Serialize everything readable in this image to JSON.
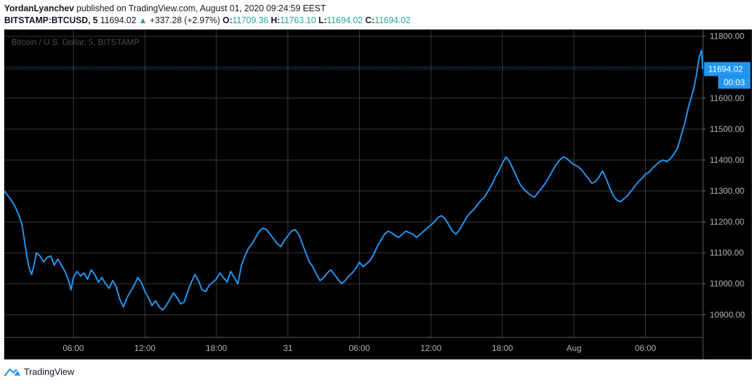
{
  "header": {
    "author": "YordanLyanchev",
    "published_text": "published on TradingView.com, August 01, 2020 09:24:59 EEST",
    "symbol": "BITSTAMP:BTCUSD, 5",
    "last": "11694.02",
    "change": "+337.28 (+2.97%)",
    "o_label": "O:",
    "o_value": "11709.36",
    "h_label": "H:",
    "h_value": "11763.10",
    "l_label": "L:",
    "l_value": "11694.02",
    "c_label": "C:",
    "c_value": "11694.02"
  },
  "footer": {
    "brand": "TradingView"
  },
  "colors": {
    "line": "#2196f3",
    "background": "#000000",
    "grid": "#3a3a3a",
    "up": "#26a69a"
  },
  "chart_data": {
    "type": "line",
    "title": "Bitcoin / U.S. Dollar, 5, BITSTAMP",
    "ylim": [
      10828,
      11822
    ],
    "y_ticks": [
      10900,
      11000,
      11100,
      11200,
      11300,
      11400,
      11500,
      11600,
      11700,
      11800
    ],
    "y_tick_labels": [
      "10900.00",
      "11000.00",
      "11100.00",
      "11200.00",
      "11300.00",
      "11400.00",
      "11500.00",
      "11600.00",
      "11700.00",
      "11800.00"
    ],
    "x_ticks": [
      {
        "label": "06:00",
        "t": 6
      },
      {
        "label": "12:00",
        "t": 12
      },
      {
        "label": "18:00",
        "t": 18
      },
      {
        "label": "31",
        "t": 24
      },
      {
        "label": "06:00",
        "t": 30
      },
      {
        "label": "12:00",
        "t": 36
      },
      {
        "label": "18:00",
        "t": 42
      },
      {
        "label": "Aug",
        "t": 48
      },
      {
        "label": "06:00",
        "t": 54
      }
    ],
    "xlim": [
      0.2,
      58.8
    ],
    "last_price": 11694.02,
    "price_label": "11694.02",
    "countdown": "00:03",
    "grid": true,
    "series": [
      {
        "points": [
          [
            0.2,
            11300
          ],
          [
            0.5,
            11285
          ],
          [
            0.8,
            11270
          ],
          [
            1.1,
            11250
          ],
          [
            1.4,
            11225
          ],
          [
            1.7,
            11190
          ],
          [
            1.9,
            11140
          ],
          [
            2.1,
            11090
          ],
          [
            2.3,
            11050
          ],
          [
            2.5,
            11030
          ],
          [
            2.7,
            11060
          ],
          [
            2.9,
            11100
          ],
          [
            3.2,
            11090
          ],
          [
            3.5,
            11070
          ],
          [
            3.8,
            11085
          ],
          [
            4.1,
            11090
          ],
          [
            4.4,
            11060
          ],
          [
            4.7,
            11080
          ],
          [
            5.0,
            11060
          ],
          [
            5.3,
            11040
          ],
          [
            5.6,
            11010
          ],
          [
            5.8,
            10980
          ],
          [
            6.0,
            11020
          ],
          [
            6.3,
            11040
          ],
          [
            6.6,
            11025
          ],
          [
            6.9,
            11035
          ],
          [
            7.2,
            11015
          ],
          [
            7.5,
            11045
          ],
          [
            7.8,
            11030
          ],
          [
            8.1,
            11005
          ],
          [
            8.4,
            11020
          ],
          [
            8.7,
            11000
          ],
          [
            9.0,
            10985
          ],
          [
            9.3,
            11010
          ],
          [
            9.6,
            10990
          ],
          [
            9.9,
            10950
          ],
          [
            10.2,
            10925
          ],
          [
            10.5,
            10955
          ],
          [
            10.8,
            10975
          ],
          [
            11.1,
            10995
          ],
          [
            11.4,
            11020
          ],
          [
            11.7,
            11005
          ],
          [
            12.0,
            10975
          ],
          [
            12.3,
            10955
          ],
          [
            12.6,
            10930
          ],
          [
            12.9,
            10945
          ],
          [
            13.2,
            10925
          ],
          [
            13.5,
            10915
          ],
          [
            13.8,
            10930
          ],
          [
            14.1,
            10950
          ],
          [
            14.4,
            10970
          ],
          [
            14.7,
            10955
          ],
          [
            15.0,
            10935
          ],
          [
            15.3,
            10940
          ],
          [
            15.6,
            10975
          ],
          [
            15.9,
            11005
          ],
          [
            16.2,
            11030
          ],
          [
            16.5,
            11010
          ],
          [
            16.8,
            10980
          ],
          [
            17.1,
            10975
          ],
          [
            17.4,
            10995
          ],
          [
            17.7,
            11005
          ],
          [
            18.0,
            11015
          ],
          [
            18.3,
            11035
          ],
          [
            18.6,
            11020
          ],
          [
            18.9,
            11005
          ],
          [
            19.2,
            11040
          ],
          [
            19.5,
            11020
          ],
          [
            19.8,
            11000
          ],
          [
            20.1,
            11060
          ],
          [
            20.4,
            11090
          ],
          [
            20.7,
            11115
          ],
          [
            21.0,
            11130
          ],
          [
            21.3,
            11150
          ],
          [
            21.6,
            11170
          ],
          [
            21.9,
            11180
          ],
          [
            22.2,
            11175
          ],
          [
            22.5,
            11160
          ],
          [
            22.8,
            11145
          ],
          [
            23.1,
            11130
          ],
          [
            23.4,
            11120
          ],
          [
            23.7,
            11140
          ],
          [
            24.0,
            11155
          ],
          [
            24.3,
            11170
          ],
          [
            24.6,
            11175
          ],
          [
            24.9,
            11160
          ],
          [
            25.2,
            11130
          ],
          [
            25.5,
            11100
          ],
          [
            25.8,
            11070
          ],
          [
            26.1,
            11055
          ],
          [
            26.4,
            11030
          ],
          [
            26.7,
            11010
          ],
          [
            27.0,
            11020
          ],
          [
            27.3,
            11035
          ],
          [
            27.6,
            11045
          ],
          [
            27.9,
            11030
          ],
          [
            28.2,
            11015
          ],
          [
            28.5,
            11000
          ],
          [
            28.8,
            11010
          ],
          [
            29.1,
            11025
          ],
          [
            29.4,
            11035
          ],
          [
            29.7,
            11050
          ],
          [
            30.0,
            11070
          ],
          [
            30.3,
            11055
          ],
          [
            30.6,
            11065
          ],
          [
            30.9,
            11075
          ],
          [
            31.2,
            11095
          ],
          [
            31.5,
            11120
          ],
          [
            31.8,
            11140
          ],
          [
            32.1,
            11160
          ],
          [
            32.4,
            11170
          ],
          [
            32.7,
            11165
          ],
          [
            33.0,
            11155
          ],
          [
            33.3,
            11150
          ],
          [
            33.6,
            11160
          ],
          [
            33.9,
            11170
          ],
          [
            34.2,
            11165
          ],
          [
            34.5,
            11160
          ],
          [
            34.8,
            11150
          ],
          [
            35.1,
            11160
          ],
          [
            35.4,
            11170
          ],
          [
            35.7,
            11180
          ],
          [
            36.0,
            11190
          ],
          [
            36.3,
            11200
          ],
          [
            36.6,
            11215
          ],
          [
            36.9,
            11220
          ],
          [
            37.2,
            11210
          ],
          [
            37.5,
            11190
          ],
          [
            37.8,
            11170
          ],
          [
            38.1,
            11160
          ],
          [
            38.4,
            11175
          ],
          [
            38.7,
            11195
          ],
          [
            39.0,
            11215
          ],
          [
            39.3,
            11230
          ],
          [
            39.6,
            11240
          ],
          [
            39.9,
            11255
          ],
          [
            40.2,
            11270
          ],
          [
            40.5,
            11280
          ],
          [
            40.8,
            11300
          ],
          [
            41.1,
            11320
          ],
          [
            41.4,
            11345
          ],
          [
            41.7,
            11365
          ],
          [
            42.0,
            11390
          ],
          [
            42.3,
            11410
          ],
          [
            42.6,
            11395
          ],
          [
            42.9,
            11370
          ],
          [
            43.2,
            11345
          ],
          [
            43.5,
            11320
          ],
          [
            43.8,
            11305
          ],
          [
            44.1,
            11295
          ],
          [
            44.4,
            11285
          ],
          [
            44.7,
            11280
          ],
          [
            45.0,
            11295
          ],
          [
            45.3,
            11310
          ],
          [
            45.6,
            11325
          ],
          [
            45.9,
            11345
          ],
          [
            46.2,
            11365
          ],
          [
            46.5,
            11385
          ],
          [
            46.8,
            11400
          ],
          [
            47.1,
            11410
          ],
          [
            47.4,
            11405
          ],
          [
            47.7,
            11395
          ],
          [
            48.0,
            11385
          ],
          [
            48.3,
            11380
          ],
          [
            48.6,
            11370
          ],
          [
            48.9,
            11355
          ],
          [
            49.2,
            11340
          ],
          [
            49.5,
            11325
          ],
          [
            49.8,
            11330
          ],
          [
            50.1,
            11345
          ],
          [
            50.4,
            11365
          ],
          [
            50.7,
            11340
          ],
          [
            51.0,
            11310
          ],
          [
            51.3,
            11285
          ],
          [
            51.6,
            11270
          ],
          [
            51.9,
            11265
          ],
          [
            52.2,
            11275
          ],
          [
            52.5,
            11285
          ],
          [
            52.8,
            11300
          ],
          [
            53.1,
            11315
          ],
          [
            53.4,
            11330
          ],
          [
            53.7,
            11340
          ],
          [
            54.0,
            11355
          ],
          [
            54.3,
            11360
          ],
          [
            54.6,
            11375
          ],
          [
            54.9,
            11385
          ],
          [
            55.2,
            11395
          ],
          [
            55.5,
            11400
          ],
          [
            55.8,
            11395
          ],
          [
            56.1,
            11405
          ],
          [
            56.4,
            11420
          ],
          [
            56.7,
            11440
          ],
          [
            57.0,
            11480
          ],
          [
            57.3,
            11520
          ],
          [
            57.6,
            11570
          ],
          [
            57.9,
            11610
          ],
          [
            58.1,
            11640
          ],
          [
            58.3,
            11680
          ],
          [
            58.5,
            11730
          ],
          [
            58.7,
            11755
          ],
          [
            58.8,
            11694
          ]
        ]
      }
    ]
  }
}
